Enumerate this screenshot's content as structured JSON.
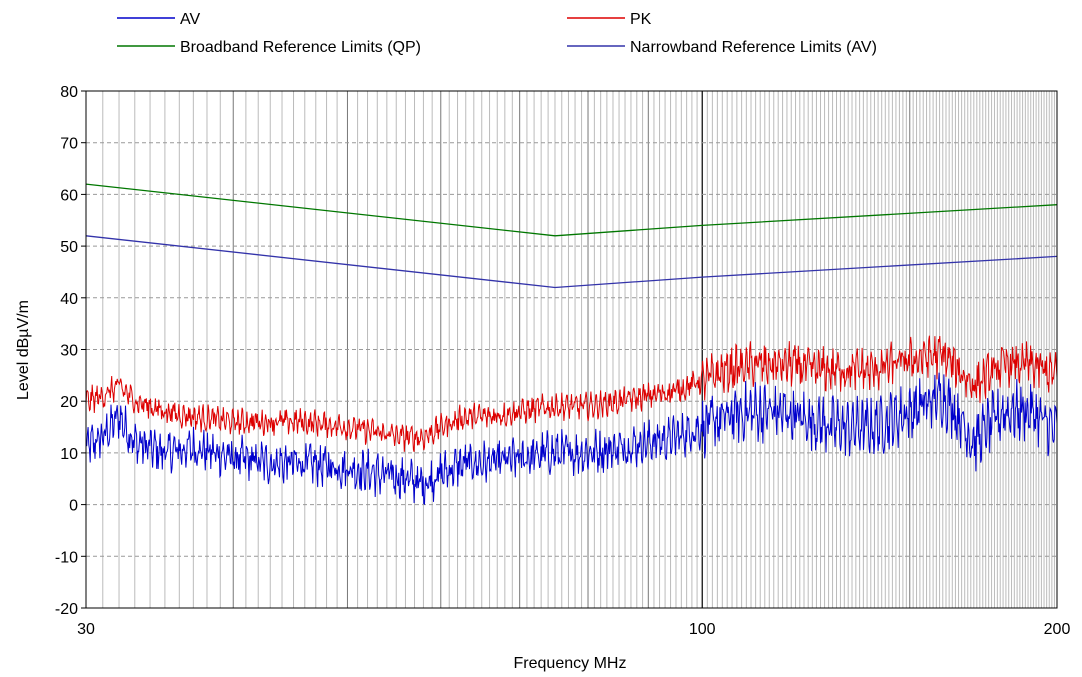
{
  "chart_data": {
    "type": "line",
    "xlabel": "Frequency MHz",
    "ylabel": "Level dBµV/m",
    "x_scale": "log",
    "xlim": [
      30,
      200
    ],
    "ylim": [
      -20,
      80
    ],
    "x_tick_labels": [
      "30",
      "100",
      "200"
    ],
    "x_tick_values": [
      30,
      100,
      200
    ],
    "y_ticks": [
      "80",
      "70",
      "60",
      "50",
      "40",
      "30",
      "20",
      "10",
      "0",
      "-10",
      "-20"
    ],
    "grid": true,
    "legend_position": "top",
    "series": [
      {
        "name": "AV",
        "color": "#0000cc",
        "style": "noisy",
        "x": [
          30,
          31,
          32,
          33,
          35,
          37,
          40,
          43,
          46,
          50,
          53,
          56,
          58,
          60,
          63,
          66,
          70,
          75,
          80,
          85,
          90,
          95,
          100,
          105,
          110,
          115,
          120,
          125,
          130,
          140,
          150,
          160,
          165,
          170,
          175,
          180,
          190,
          200
        ],
        "y": [
          11,
          13,
          17,
          12,
          10,
          11,
          9,
          8,
          8,
          7,
          6,
          5,
          4,
          6,
          8,
          8,
          9,
          10,
          10,
          11,
          12,
          13,
          15,
          17,
          18,
          18,
          17,
          16,
          15,
          15,
          18,
          21,
          17,
          12,
          15,
          18,
          18,
          14
        ]
      },
      {
        "name": "PK",
        "color": "#dd0000",
        "style": "noisy",
        "x": [
          30,
          31,
          32,
          33,
          35,
          37,
          40,
          43,
          46,
          50,
          53,
          56,
          58,
          60,
          63,
          66,
          70,
          75,
          80,
          85,
          90,
          95,
          100,
          105,
          110,
          115,
          120,
          125,
          130,
          140,
          150,
          160,
          165,
          170,
          175,
          180,
          190,
          200
        ],
        "y": [
          20,
          21,
          23,
          20,
          18,
          17,
          16,
          16,
          16,
          15,
          14,
          13,
          13,
          15,
          17,
          17,
          18,
          19,
          19,
          20,
          21,
          22,
          24,
          26,
          27,
          27,
          27,
          26,
          26,
          26,
          28,
          29,
          26,
          23,
          25,
          27,
          27,
          25
        ]
      },
      {
        "name": "Broadband Reference Limits (QP)",
        "color": "#007700",
        "style": "smooth",
        "x": [
          30,
          75,
          100,
          200
        ],
        "y": [
          62,
          52,
          54,
          58
        ]
      },
      {
        "name": "Narrowband Reference Limits (AV)",
        "color": "#3333aa",
        "style": "smooth",
        "x": [
          30,
          75,
          100,
          200
        ],
        "y": [
          52,
          42,
          44,
          48
        ]
      }
    ]
  }
}
